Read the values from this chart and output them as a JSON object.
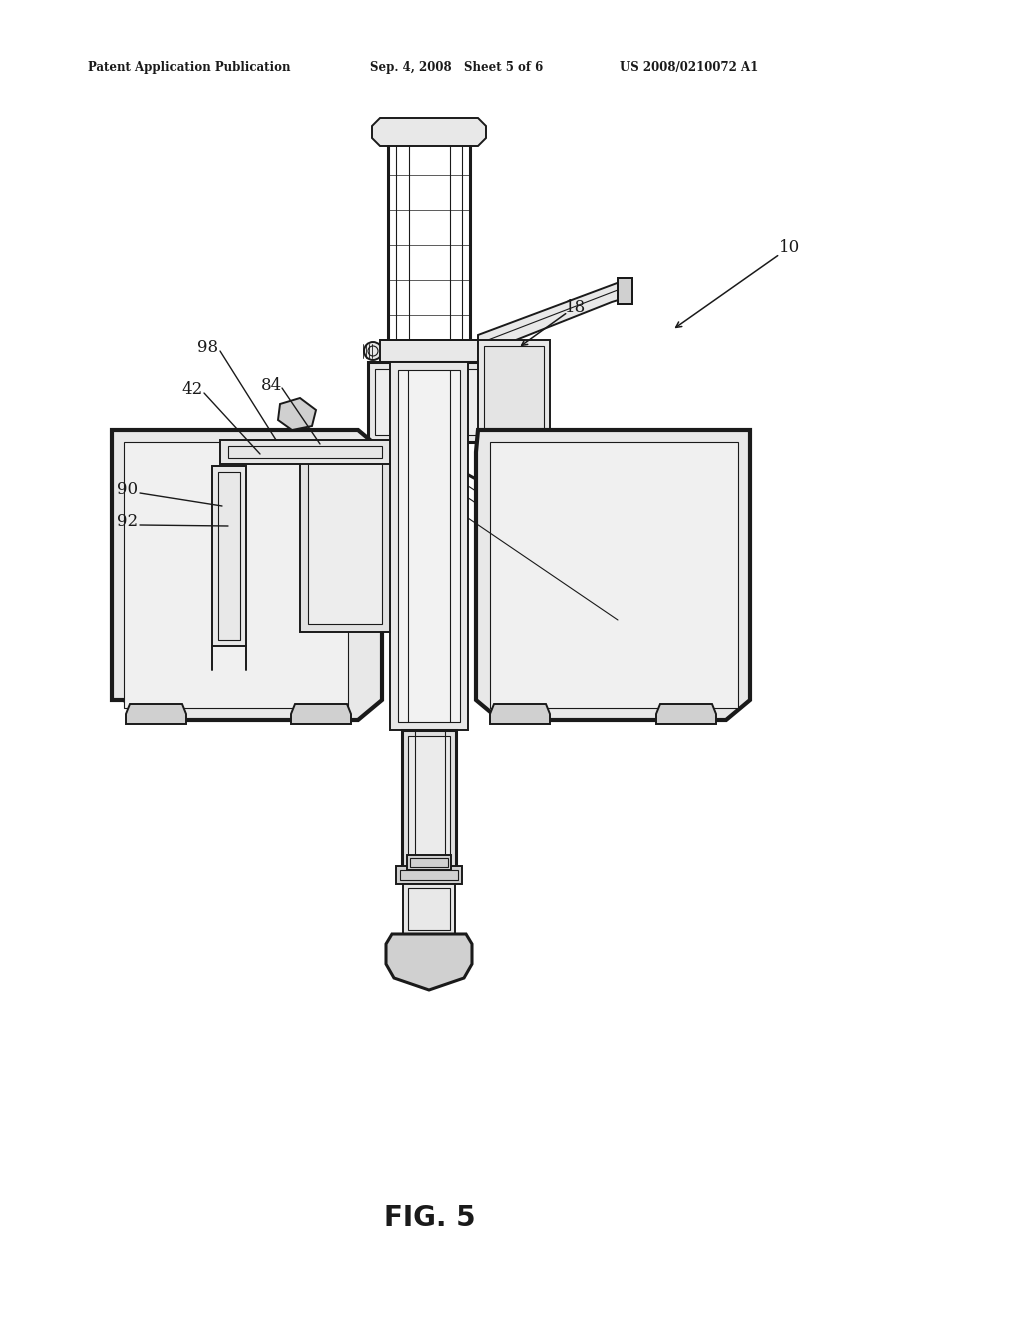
{
  "background_color": "#ffffff",
  "header_left": "Patent Application Publication",
  "header_mid": "Sep. 4, 2008   Sheet 5 of 6",
  "header_right": "US 2008/0210072 A1",
  "figure_label": "FIG. 5",
  "color": "#1a1a1a",
  "lw_thin": 0.8,
  "lw_med": 1.4,
  "lw_thick": 2.2,
  "lw_heavy": 3.0,
  "shade1": "#e8e8e8",
  "shade2": "#d0d0d0",
  "shade3": "#b8b8b8"
}
